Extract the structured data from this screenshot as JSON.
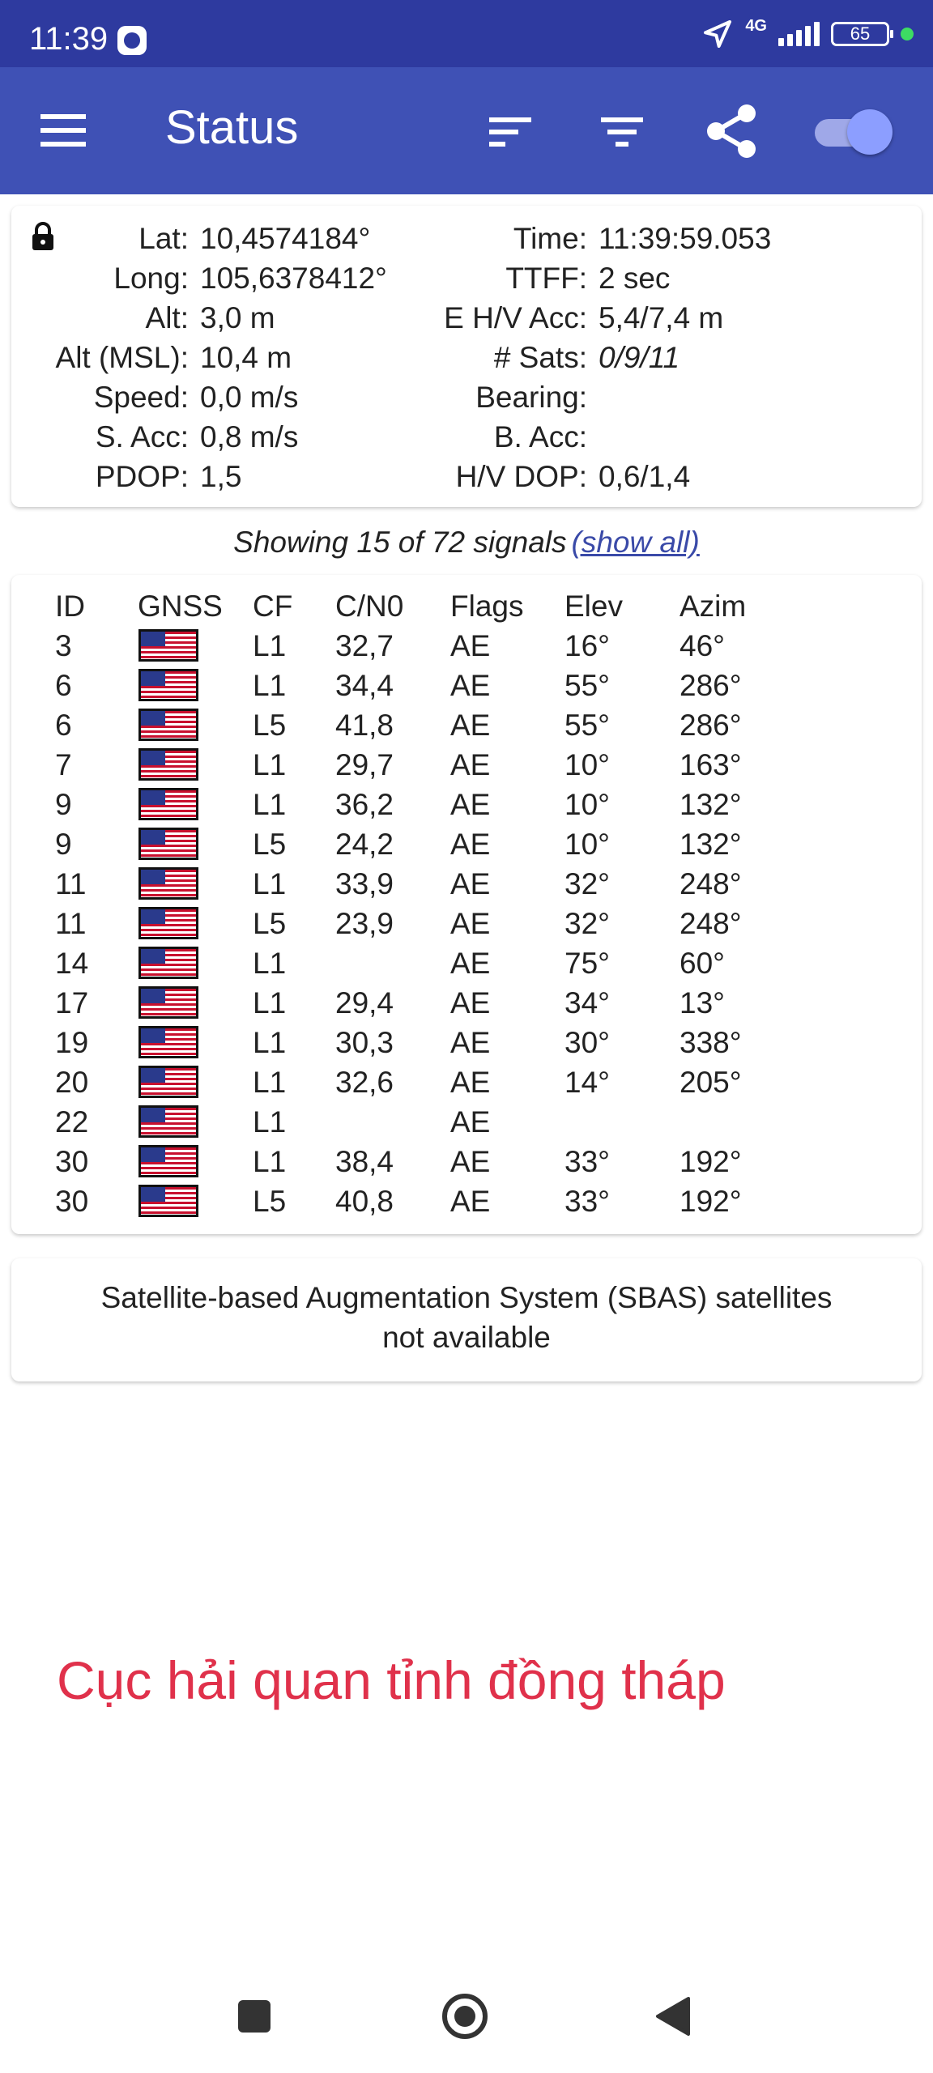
{
  "status_bar": {
    "time": "11:39",
    "network": "4G",
    "battery": "65",
    "colors": {
      "bar": "#2e3a9f",
      "dot": "#3ddc63"
    }
  },
  "toolbar": {
    "title": "Status",
    "icons": [
      "menu-icon",
      "sort-icon",
      "filter-icon",
      "share-icon",
      "toggle-switch"
    ],
    "color": "#3f51b5"
  },
  "status": {
    "left": [
      {
        "label": "Lat:",
        "value": "10,4574184°"
      },
      {
        "label": "Long:",
        "value": "105,6378412°"
      },
      {
        "label": "Alt:",
        "value": "3,0 m"
      },
      {
        "label": "Alt (MSL):",
        "value": "10,4 m"
      },
      {
        "label": "Speed:",
        "value": "0,0 m/s"
      },
      {
        "label": "S. Acc:",
        "value": "0,8 m/s"
      },
      {
        "label": "PDOP:",
        "value": "1,5"
      }
    ],
    "right": [
      {
        "label": "Time:",
        "value": "11:39:59.053"
      },
      {
        "label": "TTFF:",
        "value": "2 sec"
      },
      {
        "label": "E H/V Acc:",
        "value": "5,4/7,4 m"
      },
      {
        "label": "# Sats:",
        "value": "0/9/11"
      },
      {
        "label": "Bearing:",
        "value": ""
      },
      {
        "label": "B. Acc:",
        "value": ""
      },
      {
        "label": "H/V DOP:",
        "value": "0,6/1,4"
      }
    ]
  },
  "signals": {
    "summary": "Showing 15 of 72 signals",
    "show_all_link": "(show all)",
    "headers": {
      "id": "ID",
      "gnss": "GNSS",
      "cf": "CF",
      "cn0": "C/N0",
      "flags": "Flags",
      "elev": "Elev",
      "azim": "Azim"
    },
    "rows": [
      {
        "id": "3",
        "cf": "L1",
        "cn0": "32,7",
        "flags": "AE",
        "elev": "16°",
        "azim": "46°"
      },
      {
        "id": "6",
        "cf": "L1",
        "cn0": "34,4",
        "flags": "AE",
        "elev": "55°",
        "azim": "286°"
      },
      {
        "id": "6",
        "cf": "L5",
        "cn0": "41,8",
        "flags": "AE",
        "elev": "55°",
        "azim": "286°"
      },
      {
        "id": "7",
        "cf": "L1",
        "cn0": "29,7",
        "flags": "AE",
        "elev": "10°",
        "azim": "163°"
      },
      {
        "id": "9",
        "cf": "L1",
        "cn0": "36,2",
        "flags": "AE",
        "elev": "10°",
        "azim": "132°"
      },
      {
        "id": "9",
        "cf": "L5",
        "cn0": "24,2",
        "flags": "AE",
        "elev": "10°",
        "azim": "132°"
      },
      {
        "id": "11",
        "cf": "L1",
        "cn0": "33,9",
        "flags": "AE",
        "elev": "32°",
        "azim": "248°"
      },
      {
        "id": "11",
        "cf": "L5",
        "cn0": "23,9",
        "flags": "AE",
        "elev": "32°",
        "azim": "248°"
      },
      {
        "id": "14",
        "cf": "L1",
        "cn0": "",
        "flags": "AE",
        "elev": "75°",
        "azim": "60°"
      },
      {
        "id": "17",
        "cf": "L1",
        "cn0": "29,4",
        "flags": "AE",
        "elev": "34°",
        "azim": "13°"
      },
      {
        "id": "19",
        "cf": "L1",
        "cn0": "30,3",
        "flags": "AE",
        "elev": "30°",
        "azim": "338°"
      },
      {
        "id": "20",
        "cf": "L1",
        "cn0": "32,6",
        "flags": "AE",
        "elev": "14°",
        "azim": "205°"
      },
      {
        "id": "22",
        "cf": "L1",
        "cn0": "",
        "flags": "AE",
        "elev": "",
        "azim": ""
      },
      {
        "id": "30",
        "cf": "L1",
        "cn0": "38,4",
        "flags": "AE",
        "elev": "33°",
        "azim": "192°"
      },
      {
        "id": "30",
        "cf": "L5",
        "cn0": "40,8",
        "flags": "AE",
        "elev": "33°",
        "azim": "192°"
      }
    ]
  },
  "sbas": {
    "message_line1": "Satellite-based Augmentation System (SBAS) satellites",
    "message_line2": "not available"
  },
  "watermark": {
    "text": "Cục hải quan tỉnh đồng tháp",
    "color": "#e0314b"
  }
}
